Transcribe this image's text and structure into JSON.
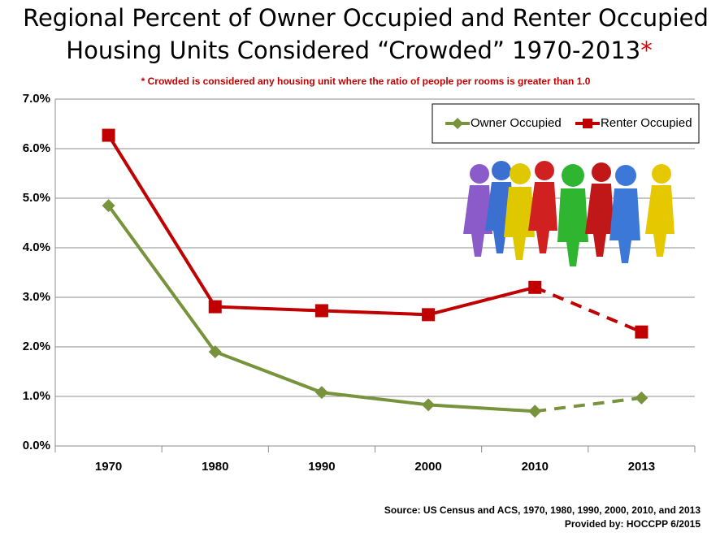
{
  "chart_data": {
    "type": "line",
    "title_lines": [
      "Regional Percent of Owner Occupied and Renter Occupied",
      "Housing Units Considered “Crowded” 1970-2013"
    ],
    "title_mark": "*",
    "subtitle": "* Crowded is considered any housing unit where the ratio of people per rooms is greater than 1.0",
    "source_lines": [
      "Source: US Census and ACS, 1970, 1980, 1990, 2000, 2010, and 2013",
      "Provided by: HOCCPP 6/2015"
    ],
    "categories": [
      "1970",
      "1980",
      "1990",
      "2000",
      "2010",
      "2013"
    ],
    "series": [
      {
        "name": "Owner Occupied",
        "color": "#77933c",
        "marker": "diamond",
        "values": [
          4.85,
          1.9,
          1.08,
          0.83,
          0.7,
          0.97
        ]
      },
      {
        "name": "Renter Occupied",
        "color": "#c00000",
        "marker": "square",
        "values": [
          6.27,
          2.81,
          2.73,
          2.65,
          3.2,
          2.3
        ]
      }
    ],
    "dashed_last_segment": true,
    "ylim": [
      0,
      7
    ],
    "yticks": [
      {
        "value": 0,
        "label": "0.0%"
      },
      {
        "value": 1,
        "label": "1.0%"
      },
      {
        "value": 2,
        "label": "2.0%"
      },
      {
        "value": 3,
        "label": "3.0%"
      },
      {
        "value": 4,
        "label": "4.0%"
      },
      {
        "value": 5,
        "label": "5.0%"
      },
      {
        "value": 6,
        "label": "6.0%"
      },
      {
        "value": 7,
        "label": "7.0%"
      }
    ],
    "grid": true,
    "legend": "top-right"
  }
}
